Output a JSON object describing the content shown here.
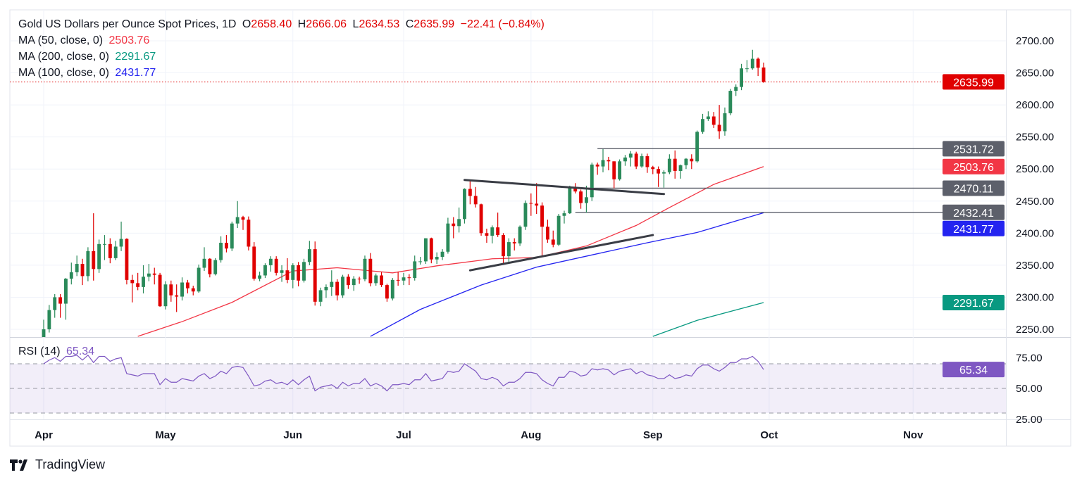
{
  "header": {
    "symbol_title": "Gold US Dollars per Ounce Spot Prices, 1D",
    "open_label": "O",
    "open": "2658.40",
    "high_label": "H",
    "high": "2666.06",
    "low_label": "L",
    "low": "2634.53",
    "close_label": "C",
    "close": "2635.99",
    "change": "−22.41 (−0.84%)"
  },
  "legend": [
    {
      "label": "MA (50, close, 0)",
      "value": "2503.76",
      "color": "#f23645"
    },
    {
      "label": "MA (200, close, 0)",
      "value": "2291.67",
      "color": "#089981"
    },
    {
      "label": "MA (100, close, 0)",
      "value": "2431.77",
      "color": "#2424f0"
    }
  ],
  "rsi_legend": {
    "label": "RSI (14)",
    "value": "65.34"
  },
  "footer": {
    "logo_text": "TradingView"
  },
  "colors": {
    "up": "#2a8a5a",
    "down": "#e00000",
    "ma50": "#f23645",
    "ma100": "#2424f0",
    "ma200": "#089981",
    "rsi": "#7e57c2",
    "trendline": "#3a3d45",
    "hline": "#5d606b"
  },
  "chart_data": {
    "type": "candlestick",
    "price_axis": {
      "ylim": [
        2240,
        2715
      ],
      "ticks": [
        "2250.00",
        "2300.00",
        "2350.00",
        "2400.00",
        "2450.00",
        "2500.00",
        "2550.00",
        "2600.00",
        "2650.00",
        "2700.00"
      ]
    },
    "rsi_axis": {
      "ylim": [
        22,
        87
      ],
      "ticks": [
        "25.00",
        "50.00",
        "75.00"
      ],
      "band": [
        30,
        70
      ],
      "mid": 50
    },
    "x_ticks": [
      {
        "label": "Apr",
        "date": "2024-04-01"
      },
      {
        "label": "May",
        "date": "2024-05-01"
      },
      {
        "label": "Jun",
        "date": "2024-06-03"
      },
      {
        "label": "Jul",
        "date": "2024-07-01"
      },
      {
        "label": "Aug",
        "date": "2024-08-01"
      },
      {
        "label": "Sep",
        "date": "2024-09-02"
      },
      {
        "label": "Oct",
        "date": "2024-10-01"
      },
      {
        "label": "Nov",
        "date": "2024-11-06"
      }
    ],
    "bars_format": [
      "date",
      "open",
      "high",
      "low",
      "close"
    ],
    "bars": [
      [
        "2024-04-01",
        2232,
        2265,
        2228,
        2250
      ],
      [
        "2024-04-02",
        2250,
        2288,
        2245,
        2280
      ],
      [
        "2024-04-03",
        2280,
        2305,
        2268,
        2300
      ],
      [
        "2024-04-04",
        2300,
        2305,
        2268,
        2290
      ],
      [
        "2024-04-05",
        2290,
        2330,
        2265,
        2329
      ],
      [
        "2024-04-08",
        2329,
        2354,
        2320,
        2339
      ],
      [
        "2024-04-09",
        2339,
        2365,
        2333,
        2352
      ],
      [
        "2024-04-10",
        2352,
        2360,
        2319,
        2333
      ],
      [
        "2024-04-11",
        2333,
        2378,
        2325,
        2372
      ],
      [
        "2024-04-12",
        2372,
        2431,
        2326,
        2344
      ],
      [
        "2024-04-15",
        2344,
        2390,
        2338,
        2383
      ],
      [
        "2024-04-16",
        2383,
        2397,
        2358,
        2383
      ],
      [
        "2024-04-17",
        2383,
        2392,
        2353,
        2361
      ],
      [
        "2024-04-18",
        2361,
        2388,
        2358,
        2379
      ],
      [
        "2024-04-19",
        2379,
        2418,
        2372,
        2391
      ],
      [
        "2024-04-22",
        2391,
        2392,
        2320,
        2327
      ],
      [
        "2024-04-23",
        2327,
        2335,
        2292,
        2322
      ],
      [
        "2024-04-24",
        2322,
        2338,
        2311,
        2316
      ],
      [
        "2024-04-25",
        2316,
        2350,
        2306,
        2332
      ],
      [
        "2024-04-26",
        2332,
        2352,
        2325,
        2337
      ],
      [
        "2024-04-29",
        2337,
        2346,
        2320,
        2335
      ],
      [
        "2024-04-30",
        2335,
        2338,
        2285,
        2286
      ],
      [
        "2024-05-01",
        2286,
        2325,
        2281,
        2320
      ],
      [
        "2024-05-02",
        2320,
        2326,
        2293,
        2303
      ],
      [
        "2024-05-03",
        2303,
        2320,
        2277,
        2301
      ],
      [
        "2024-05-06",
        2301,
        2331,
        2295,
        2323
      ],
      [
        "2024-05-07",
        2323,
        2327,
        2306,
        2314
      ],
      [
        "2024-05-08",
        2314,
        2318,
        2303,
        2309
      ],
      [
        "2024-05-09",
        2309,
        2351,
        2307,
        2346
      ],
      [
        "2024-05-10",
        2346,
        2378,
        2341,
        2360
      ],
      [
        "2024-05-13",
        2360,
        2361,
        2331,
        2336
      ],
      [
        "2024-05-14",
        2336,
        2361,
        2334,
        2358
      ],
      [
        "2024-05-15",
        2358,
        2395,
        2354,
        2385
      ],
      [
        "2024-05-16",
        2385,
        2397,
        2370,
        2376
      ],
      [
        "2024-05-17",
        2376,
        2418,
        2372,
        2415
      ],
      [
        "2024-05-20",
        2415,
        2450,
        2408,
        2425
      ],
      [
        "2024-05-21",
        2425,
        2427,
        2405,
        2421
      ],
      [
        "2024-05-22",
        2421,
        2426,
        2373,
        2379
      ],
      [
        "2024-05-23",
        2379,
        2386,
        2326,
        2329
      ],
      [
        "2024-05-24",
        2329,
        2340,
        2325,
        2334
      ],
      [
        "2024-05-27",
        2334,
        2353,
        2330,
        2350
      ],
      [
        "2024-05-28",
        2350,
        2364,
        2340,
        2360
      ],
      [
        "2024-05-29",
        2360,
        2364,
        2334,
        2338
      ],
      [
        "2024-05-30",
        2338,
        2350,
        2324,
        2342
      ],
      [
        "2024-05-31",
        2342,
        2361,
        2322,
        2327
      ],
      [
        "2024-06-03",
        2327,
        2353,
        2314,
        2350
      ],
      [
        "2024-06-04",
        2350,
        2355,
        2317,
        2326
      ],
      [
        "2024-06-05",
        2326,
        2360,
        2323,
        2355
      ],
      [
        "2024-06-06",
        2355,
        2388,
        2350,
        2375
      ],
      [
        "2024-06-07",
        2375,
        2387,
        2287,
        2293
      ],
      [
        "2024-06-10",
        2293,
        2315,
        2286,
        2311
      ],
      [
        "2024-06-11",
        2311,
        2320,
        2299,
        2316
      ],
      [
        "2024-06-12",
        2316,
        2342,
        2302,
        2324
      ],
      [
        "2024-06-13",
        2324,
        2328,
        2295,
        2303
      ],
      [
        "2024-06-14",
        2303,
        2335,
        2299,
        2332
      ],
      [
        "2024-06-17",
        2332,
        2336,
        2313,
        2319
      ],
      [
        "2024-06-18",
        2319,
        2333,
        2310,
        2329
      ],
      [
        "2024-06-19",
        2329,
        2332,
        2321,
        2328
      ],
      [
        "2024-06-20",
        2328,
        2365,
        2325,
        2360
      ],
      [
        "2024-06-21",
        2360,
        2369,
        2317,
        2322
      ],
      [
        "2024-06-24",
        2322,
        2337,
        2318,
        2334
      ],
      [
        "2024-06-25",
        2334,
        2339,
        2316,
        2319
      ],
      [
        "2024-06-26",
        2319,
        2321,
        2293,
        2298
      ],
      [
        "2024-06-27",
        2298,
        2330,
        2295,
        2327
      ],
      [
        "2024-06-28",
        2327,
        2340,
        2318,
        2326
      ],
      [
        "2024-07-01",
        2326,
        2338,
        2319,
        2331
      ],
      [
        "2024-07-02",
        2331,
        2336,
        2319,
        2330
      ],
      [
        "2024-07-03",
        2330,
        2365,
        2326,
        2356
      ],
      [
        "2024-07-04",
        2356,
        2363,
        2351,
        2356
      ],
      [
        "2024-07-05",
        2356,
        2392,
        2352,
        2392
      ],
      [
        "2024-07-08",
        2392,
        2393,
        2353,
        2359
      ],
      [
        "2024-07-09",
        2359,
        2370,
        2352,
        2363
      ],
      [
        "2024-07-10",
        2363,
        2375,
        2358,
        2371
      ],
      [
        "2024-07-11",
        2371,
        2424,
        2368,
        2415
      ],
      [
        "2024-07-12",
        2415,
        2425,
        2392,
        2411
      ],
      [
        "2024-07-15",
        2411,
        2440,
        2401,
        2422
      ],
      [
        "2024-07-16",
        2422,
        2470,
        2415,
        2469
      ],
      [
        "2024-07-17",
        2469,
        2483,
        2445,
        2458
      ],
      [
        "2024-07-18",
        2458,
        2472,
        2440,
        2445
      ],
      [
        "2024-07-19",
        2445,
        2446,
        2396,
        2400
      ],
      [
        "2024-07-22",
        2400,
        2407,
        2385,
        2396
      ],
      [
        "2024-07-23",
        2396,
        2412,
        2384,
        2409
      ],
      [
        "2024-07-24",
        2409,
        2432,
        2394,
        2397
      ],
      [
        "2024-07-25",
        2397,
        2400,
        2353,
        2364
      ],
      [
        "2024-07-26",
        2364,
        2392,
        2355,
        2386
      ],
      [
        "2024-07-29",
        2386,
        2392,
        2373,
        2384
      ],
      [
        "2024-07-30",
        2384,
        2412,
        2380,
        2410
      ],
      [
        "2024-07-31",
        2410,
        2451,
        2405,
        2447
      ],
      [
        "2024-08-01",
        2447,
        2462,
        2427,
        2446
      ],
      [
        "2024-08-02",
        2446,
        2478,
        2430,
        2443
      ],
      [
        "2024-08-05",
        2443,
        2448,
        2364,
        2410
      ],
      [
        "2024-08-06",
        2410,
        2421,
        2385,
        2390
      ],
      [
        "2024-08-07",
        2390,
        2404,
        2378,
        2382
      ],
      [
        "2024-08-08",
        2382,
        2430,
        2380,
        2427
      ],
      [
        "2024-08-09",
        2427,
        2435,
        2415,
        2431
      ],
      [
        "2024-08-12",
        2431,
        2474,
        2430,
        2472
      ],
      [
        "2024-08-13",
        2472,
        2478,
        2462,
        2465
      ],
      [
        "2024-08-14",
        2465,
        2468,
        2438,
        2447
      ],
      [
        "2024-08-15",
        2447,
        2474,
        2432,
        2456
      ],
      [
        "2024-08-16",
        2456,
        2510,
        2450,
        2507
      ],
      [
        "2024-08-19",
        2507,
        2510,
        2491,
        2504
      ],
      [
        "2024-08-20",
        2504,
        2531,
        2495,
        2514
      ],
      [
        "2024-08-21",
        2514,
        2519,
        2498,
        2512
      ],
      [
        "2024-08-22",
        2512,
        2512,
        2470,
        2484
      ],
      [
        "2024-08-23",
        2484,
        2515,
        2482,
        2512
      ],
      [
        "2024-08-26",
        2512,
        2522,
        2505,
        2518
      ],
      [
        "2024-08-27",
        2518,
        2528,
        2504,
        2524
      ],
      [
        "2024-08-28",
        2524,
        2527,
        2500,
        2504
      ],
      [
        "2024-08-29",
        2504,
        2524,
        2502,
        2520
      ],
      [
        "2024-08-30",
        2520,
        2524,
        2494,
        2503
      ],
      [
        "2024-09-02",
        2503,
        2505,
        2492,
        2500
      ],
      [
        "2024-09-03",
        2500,
        2504,
        2472,
        2493
      ],
      [
        "2024-09-04",
        2493,
        2498,
        2471,
        2495
      ],
      [
        "2024-09-05",
        2495,
        2523,
        2492,
        2516
      ],
      [
        "2024-09-06",
        2516,
        2529,
        2485,
        2497
      ],
      [
        "2024-09-09",
        2497,
        2507,
        2485,
        2506
      ],
      [
        "2024-09-10",
        2506,
        2517,
        2500,
        2516
      ],
      [
        "2024-09-11",
        2516,
        2523,
        2500,
        2512
      ],
      [
        "2024-09-12",
        2512,
        2560,
        2510,
        2558
      ],
      [
        "2024-09-13",
        2558,
        2586,
        2555,
        2578
      ],
      [
        "2024-09-16",
        2578,
        2590,
        2575,
        2582
      ],
      [
        "2024-09-17",
        2582,
        2589,
        2564,
        2569
      ],
      [
        "2024-09-18",
        2569,
        2600,
        2547,
        2559
      ],
      [
        "2024-09-19",
        2559,
        2596,
        2552,
        2587
      ],
      [
        "2024-09-20",
        2587,
        2625,
        2584,
        2622
      ],
      [
        "2024-09-23",
        2622,
        2632,
        2614,
        2628
      ],
      [
        "2024-09-24",
        2628,
        2664,
        2623,
        2657
      ],
      [
        "2024-09-25",
        2657,
        2670,
        2651,
        2657
      ],
      [
        "2024-09-26",
        2657,
        2686,
        2655,
        2672
      ],
      [
        "2024-09-27",
        2672,
        2674,
        2645,
        2658
      ],
      [
        "2024-09-30",
        2658.4,
        2666.06,
        2634.53,
        2635.99
      ]
    ],
    "rsi": [
      70,
      73,
      75,
      72,
      76,
      76,
      77,
      73,
      77,
      71,
      76,
      76,
      72,
      74,
      75,
      62,
      61,
      60,
      62,
      62,
      62,
      53,
      58,
      55,
      55,
      58,
      57,
      56,
      60,
      62,
      58,
      60,
      64,
      62,
      67,
      68,
      67,
      60,
      52,
      53,
      56,
      57,
      54,
      55,
      53,
      57,
      53,
      57,
      60,
      48,
      51,
      52,
      53,
      50,
      55,
      52,
      54,
      54,
      58,
      52,
      54,
      52,
      48,
      53,
      53,
      54,
      53,
      57,
      57,
      62,
      56,
      57,
      58,
      64,
      63,
      64,
      70,
      67,
      64,
      58,
      57,
      59,
      57,
      52,
      55,
      55,
      58,
      63,
      63,
      62,
      57,
      54,
      52,
      59,
      59,
      64,
      63,
      60,
      61,
      66,
      65,
      66,
      65,
      61,
      64,
      65,
      66,
      62,
      64,
      61,
      60,
      58,
      58,
      61,
      58,
      59,
      61,
      60,
      66,
      69,
      69,
      66,
      64,
      67,
      71,
      71,
      74,
      74,
      76,
      72,
      65.34
    ],
    "moving_averages": [
      {
        "name": "MA (50, close, 0)",
        "color_key": "ma50",
        "points": [
          [
            "2024-04-24",
            2239
          ],
          [
            "2024-05-06",
            2262
          ],
          [
            "2024-05-17",
            2292
          ],
          [
            "2024-06-03",
            2341
          ],
          [
            "2024-06-13",
            2346
          ],
          [
            "2024-06-27",
            2338
          ],
          [
            "2024-07-09",
            2349
          ],
          [
            "2024-07-23",
            2360
          ],
          [
            "2024-08-02",
            2362
          ],
          [
            "2024-08-15",
            2380
          ],
          [
            "2024-08-28",
            2412
          ],
          [
            "2024-09-05",
            2440
          ],
          [
            "2024-09-17",
            2476
          ],
          [
            "2024-09-30",
            2503.76
          ]
        ]
      },
      {
        "name": "MA (100, close, 0)",
        "color_key": "ma100",
        "points": [
          [
            "2024-06-21",
            2239
          ],
          [
            "2024-07-04",
            2281
          ],
          [
            "2024-07-19",
            2319
          ],
          [
            "2024-08-02",
            2347
          ],
          [
            "2024-08-16",
            2366
          ],
          [
            "2024-08-30",
            2385
          ],
          [
            "2024-09-12",
            2401
          ],
          [
            "2024-09-30",
            2431.77
          ]
        ]
      },
      {
        "name": "MA (200, close, 0)",
        "color_key": "ma200",
        "points": [
          [
            "2024-09-02",
            2239
          ],
          [
            "2024-09-12",
            2264
          ],
          [
            "2024-09-30",
            2291.67
          ]
        ]
      }
    ],
    "trendlines": [
      {
        "from": [
          "2024-07-16",
          2483
        ],
        "to": [
          "2024-09-04",
          2461
        ]
      },
      {
        "from": [
          "2024-07-17",
          2342
        ],
        "to": [
          "2024-09-02",
          2397
        ]
      }
    ],
    "horizontal_lines": [
      {
        "from_date": "2024-08-19",
        "value": "2531.72"
      },
      {
        "from_date": "2024-08-15",
        "value": "2470.11"
      },
      {
        "from_date": "2024-08-13",
        "value": "2432.41"
      }
    ],
    "price_tags": [
      {
        "value": "2635.99",
        "color": "#e00000"
      },
      {
        "value": "2531.72",
        "color": "#5d606b"
      },
      {
        "value": "2503.76",
        "color": "#f23645"
      },
      {
        "value": "2470.11",
        "color": "#5d606b"
      },
      {
        "value": "2432.41",
        "color": "#5d606b"
      },
      {
        "value": "2431.77",
        "color": "#2424f0"
      },
      {
        "value": "2291.67",
        "color": "#089981"
      }
    ],
    "rsi_tag": {
      "value": "65.34",
      "color": "#7e57c2"
    },
    "last_price": 2635.99
  }
}
